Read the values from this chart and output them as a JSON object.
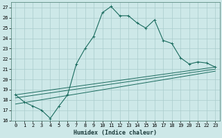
{
  "title": "",
  "xlabel": "Humidex (Indice chaleur)",
  "ylabel": "",
  "xlim": [
    -0.5,
    23.5
  ],
  "ylim": [
    16,
    27.5
  ],
  "yticks": [
    16,
    17,
    18,
    19,
    20,
    21,
    22,
    23,
    24,
    25,
    26,
    27
  ],
  "xticks": [
    0,
    1,
    2,
    3,
    4,
    5,
    6,
    7,
    8,
    9,
    10,
    11,
    12,
    13,
    14,
    15,
    16,
    17,
    18,
    19,
    20,
    21,
    22,
    23
  ],
  "bg_color": "#cde8e8",
  "grid_color": "#aacccc",
  "line_color": "#1a6b5e",
  "series1_x": [
    0,
    1,
    2,
    3,
    4,
    5,
    6,
    7,
    8,
    9,
    10,
    11,
    12,
    13,
    14,
    15,
    16,
    17,
    18,
    19,
    20,
    21,
    22,
    23
  ],
  "series1_y": [
    18.5,
    17.8,
    17.4,
    17.0,
    16.2,
    17.4,
    18.5,
    21.5,
    23.0,
    24.2,
    26.5,
    27.1,
    26.2,
    26.2,
    25.5,
    25.0,
    25.8,
    23.8,
    23.5,
    22.1,
    21.5,
    21.7,
    21.6,
    21.2
  ],
  "trend1_x0": 18.5,
  "trend1_x23": 21.2,
  "trend2_x0": 18.2,
  "trend2_x23": 21.0,
  "trend3_x0": 17.6,
  "trend3_x23": 20.8
}
